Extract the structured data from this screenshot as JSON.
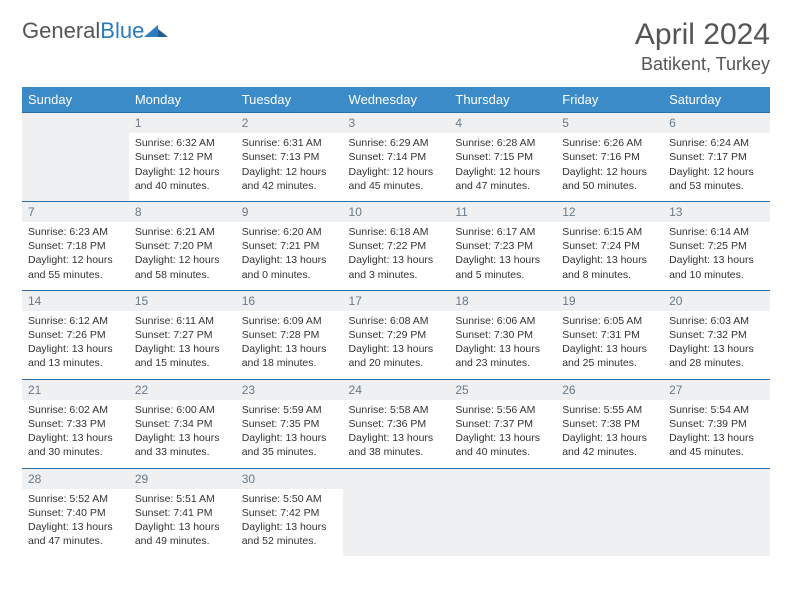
{
  "logo": {
    "word1": "General",
    "word2": "Blue"
  },
  "title": "April 2024",
  "location": "Batikent, Turkey",
  "colors": {
    "header_bg": "#3b8bc9",
    "row_border": "#2b6fa8",
    "shade": "#eef0f2",
    "text": "#333333",
    "daynum": "#6a7a88"
  },
  "day_headers": [
    "Sunday",
    "Monday",
    "Tuesday",
    "Wednesday",
    "Thursday",
    "Friday",
    "Saturday"
  ],
  "weeks": [
    [
      null,
      {
        "n": "1",
        "sr": "Sunrise: 6:32 AM",
        "ss": "Sunset: 7:12 PM",
        "d1": "Daylight: 12 hours",
        "d2": "and 40 minutes."
      },
      {
        "n": "2",
        "sr": "Sunrise: 6:31 AM",
        "ss": "Sunset: 7:13 PM",
        "d1": "Daylight: 12 hours",
        "d2": "and 42 minutes."
      },
      {
        "n": "3",
        "sr": "Sunrise: 6:29 AM",
        "ss": "Sunset: 7:14 PM",
        "d1": "Daylight: 12 hours",
        "d2": "and 45 minutes."
      },
      {
        "n": "4",
        "sr": "Sunrise: 6:28 AM",
        "ss": "Sunset: 7:15 PM",
        "d1": "Daylight: 12 hours",
        "d2": "and 47 minutes."
      },
      {
        "n": "5",
        "sr": "Sunrise: 6:26 AM",
        "ss": "Sunset: 7:16 PM",
        "d1": "Daylight: 12 hours",
        "d2": "and 50 minutes."
      },
      {
        "n": "6",
        "sr": "Sunrise: 6:24 AM",
        "ss": "Sunset: 7:17 PM",
        "d1": "Daylight: 12 hours",
        "d2": "and 53 minutes."
      }
    ],
    [
      {
        "n": "7",
        "sr": "Sunrise: 6:23 AM",
        "ss": "Sunset: 7:18 PM",
        "d1": "Daylight: 12 hours",
        "d2": "and 55 minutes."
      },
      {
        "n": "8",
        "sr": "Sunrise: 6:21 AM",
        "ss": "Sunset: 7:20 PM",
        "d1": "Daylight: 12 hours",
        "d2": "and 58 minutes."
      },
      {
        "n": "9",
        "sr": "Sunrise: 6:20 AM",
        "ss": "Sunset: 7:21 PM",
        "d1": "Daylight: 13 hours",
        "d2": "and 0 minutes."
      },
      {
        "n": "10",
        "sr": "Sunrise: 6:18 AM",
        "ss": "Sunset: 7:22 PM",
        "d1": "Daylight: 13 hours",
        "d2": "and 3 minutes."
      },
      {
        "n": "11",
        "sr": "Sunrise: 6:17 AM",
        "ss": "Sunset: 7:23 PM",
        "d1": "Daylight: 13 hours",
        "d2": "and 5 minutes."
      },
      {
        "n": "12",
        "sr": "Sunrise: 6:15 AM",
        "ss": "Sunset: 7:24 PM",
        "d1": "Daylight: 13 hours",
        "d2": "and 8 minutes."
      },
      {
        "n": "13",
        "sr": "Sunrise: 6:14 AM",
        "ss": "Sunset: 7:25 PM",
        "d1": "Daylight: 13 hours",
        "d2": "and 10 minutes."
      }
    ],
    [
      {
        "n": "14",
        "sr": "Sunrise: 6:12 AM",
        "ss": "Sunset: 7:26 PM",
        "d1": "Daylight: 13 hours",
        "d2": "and 13 minutes."
      },
      {
        "n": "15",
        "sr": "Sunrise: 6:11 AM",
        "ss": "Sunset: 7:27 PM",
        "d1": "Daylight: 13 hours",
        "d2": "and 15 minutes."
      },
      {
        "n": "16",
        "sr": "Sunrise: 6:09 AM",
        "ss": "Sunset: 7:28 PM",
        "d1": "Daylight: 13 hours",
        "d2": "and 18 minutes."
      },
      {
        "n": "17",
        "sr": "Sunrise: 6:08 AM",
        "ss": "Sunset: 7:29 PM",
        "d1": "Daylight: 13 hours",
        "d2": "and 20 minutes."
      },
      {
        "n": "18",
        "sr": "Sunrise: 6:06 AM",
        "ss": "Sunset: 7:30 PM",
        "d1": "Daylight: 13 hours",
        "d2": "and 23 minutes."
      },
      {
        "n": "19",
        "sr": "Sunrise: 6:05 AM",
        "ss": "Sunset: 7:31 PM",
        "d1": "Daylight: 13 hours",
        "d2": "and 25 minutes."
      },
      {
        "n": "20",
        "sr": "Sunrise: 6:03 AM",
        "ss": "Sunset: 7:32 PM",
        "d1": "Daylight: 13 hours",
        "d2": "and 28 minutes."
      }
    ],
    [
      {
        "n": "21",
        "sr": "Sunrise: 6:02 AM",
        "ss": "Sunset: 7:33 PM",
        "d1": "Daylight: 13 hours",
        "d2": "and 30 minutes."
      },
      {
        "n": "22",
        "sr": "Sunrise: 6:00 AM",
        "ss": "Sunset: 7:34 PM",
        "d1": "Daylight: 13 hours",
        "d2": "and 33 minutes."
      },
      {
        "n": "23",
        "sr": "Sunrise: 5:59 AM",
        "ss": "Sunset: 7:35 PM",
        "d1": "Daylight: 13 hours",
        "d2": "and 35 minutes."
      },
      {
        "n": "24",
        "sr": "Sunrise: 5:58 AM",
        "ss": "Sunset: 7:36 PM",
        "d1": "Daylight: 13 hours",
        "d2": "and 38 minutes."
      },
      {
        "n": "25",
        "sr": "Sunrise: 5:56 AM",
        "ss": "Sunset: 7:37 PM",
        "d1": "Daylight: 13 hours",
        "d2": "and 40 minutes."
      },
      {
        "n": "26",
        "sr": "Sunrise: 5:55 AM",
        "ss": "Sunset: 7:38 PM",
        "d1": "Daylight: 13 hours",
        "d2": "and 42 minutes."
      },
      {
        "n": "27",
        "sr": "Sunrise: 5:54 AM",
        "ss": "Sunset: 7:39 PM",
        "d1": "Daylight: 13 hours",
        "d2": "and 45 minutes."
      }
    ],
    [
      {
        "n": "28",
        "sr": "Sunrise: 5:52 AM",
        "ss": "Sunset: 7:40 PM",
        "d1": "Daylight: 13 hours",
        "d2": "and 47 minutes."
      },
      {
        "n": "29",
        "sr": "Sunrise: 5:51 AM",
        "ss": "Sunset: 7:41 PM",
        "d1": "Daylight: 13 hours",
        "d2": "and 49 minutes."
      },
      {
        "n": "30",
        "sr": "Sunrise: 5:50 AM",
        "ss": "Sunset: 7:42 PM",
        "d1": "Daylight: 13 hours",
        "d2": "and 52 minutes."
      },
      null,
      null,
      null,
      null
    ]
  ]
}
